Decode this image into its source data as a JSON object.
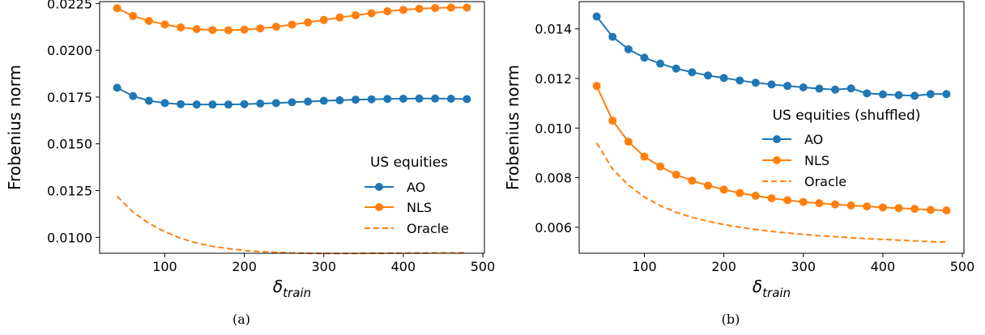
{
  "colors": {
    "AO": "#1f77b4",
    "NLS": "#ff7f0e",
    "Oracle": "#ff7f0e"
  },
  "chart_data": [
    {
      "type": "line",
      "ylabel": "Frobenius norm",
      "xlabel_main": "δ",
      "xlabel_sub": "train",
      "caption": "(a)",
      "legend_title": "US equities",
      "legend_loc": "lower-right",
      "xlim": [
        18,
        502
      ],
      "ylim": [
        0.00915,
        0.0226
      ],
      "xticks": [
        100,
        200,
        300,
        400,
        500
      ],
      "xtick_labels": [
        "100",
        "200",
        "300",
        "400",
        "500"
      ],
      "yticks": [
        0.01,
        0.0125,
        0.015,
        0.0175,
        0.02,
        0.0225
      ],
      "ytick_labels": [
        "0.0100",
        "0.0125",
        "0.0150",
        "0.0175",
        "0.0200",
        "0.0225"
      ],
      "x": [
        40,
        60,
        80,
        100,
        120,
        140,
        160,
        180,
        200,
        220,
        240,
        260,
        280,
        300,
        320,
        340,
        360,
        380,
        400,
        420,
        440,
        460,
        480
      ],
      "series": [
        {
          "name": "AO",
          "style": "line-marker",
          "values": [
            0.018,
            0.01755,
            0.0173,
            0.01718,
            0.01712,
            0.0171,
            0.0171,
            0.0171,
            0.01712,
            0.01715,
            0.01718,
            0.01722,
            0.01726,
            0.0173,
            0.01733,
            0.01736,
            0.01738,
            0.0174,
            0.01741,
            0.01742,
            0.01742,
            0.01741,
            0.01739
          ]
        },
        {
          "name": "NLS",
          "style": "line-marker",
          "values": [
            0.02225,
            0.02183,
            0.02157,
            0.02138,
            0.02122,
            0.02113,
            0.02108,
            0.02107,
            0.0211,
            0.02117,
            0.02126,
            0.02137,
            0.02149,
            0.02162,
            0.02175,
            0.02187,
            0.02198,
            0.02208,
            0.02216,
            0.02222,
            0.02226,
            0.02228,
            0.02228
          ]
        },
        {
          "name": "Oracle",
          "style": "dashed",
          "values": [
            0.0122,
            0.01135,
            0.01075,
            0.0103,
            0.00995,
            0.0097,
            0.00952,
            0.0094,
            0.0093,
            0.00924,
            0.0092,
            0.00917,
            0.00915,
            0.00914,
            0.00914,
            0.00914,
            0.00915,
            0.00915,
            0.00916,
            0.00916,
            0.00917,
            0.00917,
            0.00918
          ]
        }
      ]
    },
    {
      "type": "line",
      "ylabel": "Frobenius norm",
      "xlabel_main": "δ",
      "xlabel_sub": "train",
      "caption": "(b)",
      "legend_title": "US equities (shuffled)",
      "legend_loc": "center-right",
      "xlim": [
        18,
        502
      ],
      "ylim": [
        0.00495,
        0.0151
      ],
      "xticks": [
        100,
        200,
        300,
        400,
        500
      ],
      "xtick_labels": [
        "100",
        "200",
        "300",
        "400",
        "500"
      ],
      "yticks": [
        0.006,
        0.008,
        0.01,
        0.012,
        0.014
      ],
      "ytick_labels": [
        "0.006",
        "0.008",
        "0.010",
        "0.012",
        "0.014"
      ],
      "x": [
        40,
        60,
        80,
        100,
        120,
        140,
        160,
        180,
        200,
        220,
        240,
        260,
        280,
        300,
        320,
        340,
        360,
        380,
        400,
        420,
        440,
        460,
        480
      ],
      "series": [
        {
          "name": "AO",
          "style": "line-marker",
          "values": [
            0.0145,
            0.01368,
            0.01318,
            0.01284,
            0.0126,
            0.0124,
            0.01225,
            0.01212,
            0.01202,
            0.01192,
            0.01183,
            0.01176,
            0.0117,
            0.01164,
            0.01159,
            0.01155,
            0.0116,
            0.0114,
            0.01136,
            0.01133,
            0.0113,
            0.01137,
            0.01137
          ]
        },
        {
          "name": "NLS",
          "style": "line-marker",
          "values": [
            0.0117,
            0.0103,
            0.00945,
            0.00885,
            0.00845,
            0.00812,
            0.00788,
            0.00768,
            0.00752,
            0.00738,
            0.00727,
            0.00717,
            0.00709,
            0.00702,
            0.00697,
            0.00692,
            0.00688,
            0.00684,
            0.0068,
            0.00677,
            0.00674,
            0.0067,
            0.00668
          ]
        },
        {
          "name": "Oracle",
          "style": "dashed",
          "values": [
            0.0094,
            0.00835,
            0.0077,
            0.00722,
            0.00687,
            0.0066,
            0.0064,
            0.00624,
            0.00611,
            0.006,
            0.00591,
            0.00583,
            0.00577,
            0.00571,
            0.00566,
            0.00562,
            0.00558,
            0.00554,
            0.00551,
            0.00548,
            0.00545,
            0.00542,
            0.0054
          ]
        }
      ]
    }
  ]
}
